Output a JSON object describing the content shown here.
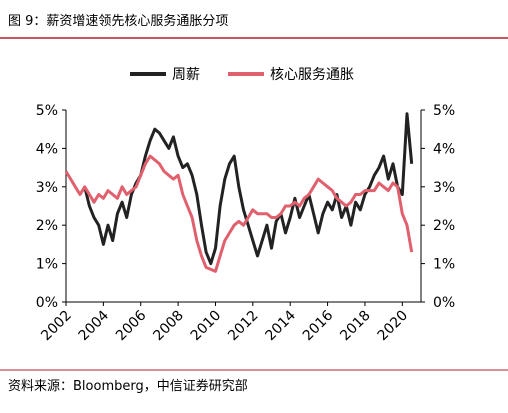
{
  "chart_data": {
    "type": "line",
    "title": "图 9：薪资增速领先核心服务通胀分项",
    "source": "资料来源：Bloomberg，中信证券研究部",
    "x": [
      2002,
      2002.25,
      2002.5,
      2002.75,
      2003,
      2003.25,
      2003.5,
      2003.75,
      2004,
      2004.25,
      2004.5,
      2004.75,
      2005,
      2005.25,
      2005.5,
      2005.75,
      2006,
      2006.25,
      2006.5,
      2006.75,
      2007,
      2007.25,
      2007.5,
      2007.75,
      2008,
      2008.25,
      2008.5,
      2008.75,
      2009,
      2009.25,
      2009.5,
      2009.75,
      2010,
      2010.25,
      2010.5,
      2010.75,
      2011,
      2011.25,
      2011.5,
      2011.75,
      2012,
      2012.25,
      2012.5,
      2012.75,
      2013,
      2013.25,
      2013.5,
      2013.75,
      2014,
      2014.25,
      2014.5,
      2014.75,
      2015,
      2015.25,
      2015.5,
      2015.75,
      2016,
      2016.25,
      2016.5,
      2016.75,
      2017,
      2017.25,
      2017.5,
      2017.75,
      2018,
      2018.25,
      2018.5,
      2018.75,
      2019,
      2019.25,
      2019.5,
      2019.75,
      2020,
      2020.25,
      2020.5
    ],
    "series": [
      {
        "name": "周薪",
        "color": "#222222",
        "values": [
          null,
          null,
          null,
          null,
          3.0,
          2.5,
          2.2,
          2.0,
          1.5,
          2.0,
          1.6,
          2.3,
          2.6,
          2.2,
          2.8,
          3.1,
          3.3,
          3.8,
          4.2,
          4.5,
          4.4,
          4.2,
          4.0,
          4.3,
          3.8,
          3.5,
          3.6,
          3.3,
          2.8,
          2.0,
          1.3,
          1.0,
          1.4,
          2.5,
          3.2,
          3.6,
          3.8,
          3.0,
          2.4,
          2.0,
          1.6,
          1.2,
          1.6,
          2.0,
          1.4,
          2.1,
          2.3,
          1.8,
          2.2,
          2.7,
          2.2,
          2.5,
          2.8,
          2.3,
          1.8,
          2.3,
          2.6,
          2.4,
          2.8,
          2.2,
          2.5,
          2.0,
          2.6,
          2.4,
          2.8,
          3.0,
          3.3,
          3.5,
          3.8,
          3.2,
          3.6,
          3.0,
          2.8,
          4.9,
          3.6
        ]
      },
      {
        "name": "核心服务通胀",
        "color": "#e0606e",
        "values": [
          3.4,
          3.2,
          3.0,
          2.8,
          3.0,
          2.8,
          2.6,
          2.8,
          2.7,
          2.9,
          2.8,
          2.7,
          3.0,
          2.8,
          2.9,
          3.0,
          3.3,
          3.6,
          3.8,
          3.7,
          3.6,
          3.4,
          3.3,
          3.2,
          3.3,
          2.8,
          2.5,
          2.2,
          1.6,
          1.2,
          0.9,
          0.85,
          0.8,
          1.2,
          1.6,
          1.8,
          2.0,
          2.1,
          2.0,
          2.2,
          2.4,
          2.3,
          2.3,
          2.3,
          2.2,
          2.2,
          2.3,
          2.5,
          2.5,
          2.6,
          2.5,
          2.7,
          2.8,
          3.0,
          3.2,
          3.1,
          3.0,
          2.9,
          2.7,
          2.6,
          2.5,
          2.6,
          2.8,
          2.8,
          2.9,
          2.9,
          2.9,
          3.1,
          3.0,
          2.9,
          3.1,
          3.0,
          2.3,
          2.0,
          1.3
        ]
      }
    ],
    "xlim": [
      2002,
      2021
    ],
    "xticks": [
      2002,
      2004,
      2006,
      2008,
      2010,
      2012,
      2014,
      2016,
      2018,
      2020
    ],
    "ylim": [
      0,
      5
    ],
    "yticks": [
      {
        "value": 0,
        "label": "0%"
      },
      {
        "value": 1,
        "label": "1%"
      },
      {
        "value": 2,
        "label": "2%"
      },
      {
        "value": 3,
        "label": "3%"
      },
      {
        "value": 4,
        "label": "4%"
      },
      {
        "value": 5,
        "label": "5%"
      }
    ],
    "y2lim": [
      0,
      5
    ],
    "y2ticks": [
      {
        "value": 0,
        "label": "0%"
      },
      {
        "value": 1,
        "label": "1%"
      },
      {
        "value": 2,
        "label": "2%"
      },
      {
        "value": 3,
        "label": "3%"
      },
      {
        "value": 4,
        "label": "4%"
      },
      {
        "value": 5,
        "label": "5%"
      }
    ]
  }
}
